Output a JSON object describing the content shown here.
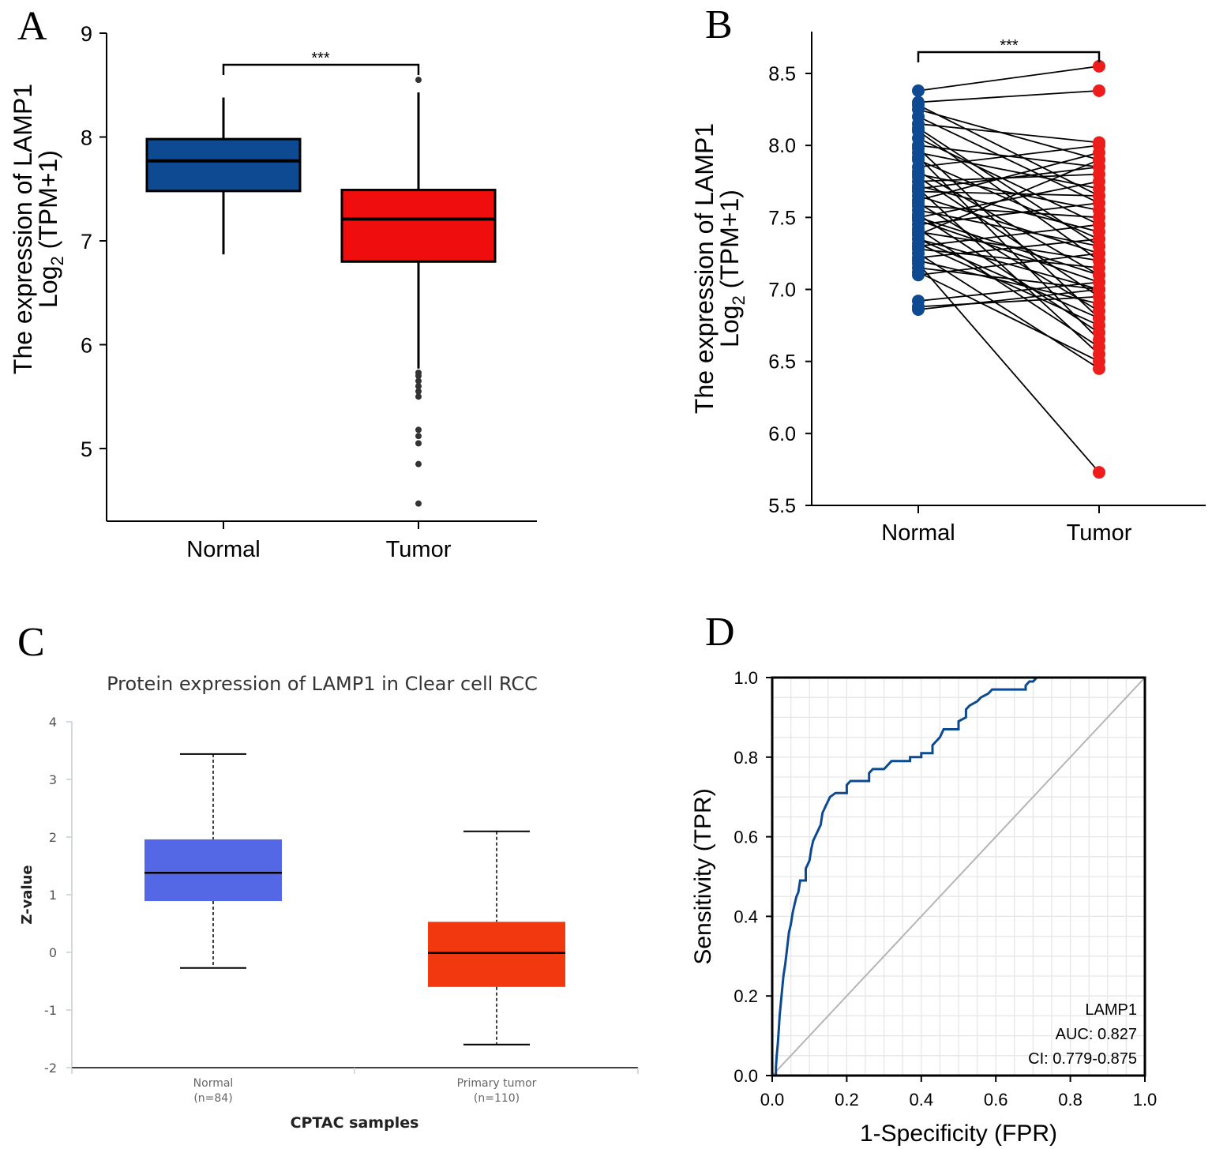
{
  "chart_data": [
    {
      "panel": "A",
      "type": "box",
      "ylabel_line1": "The expression of LAMP1",
      "ylabel_log": "Log",
      "ylabel_sub": "2",
      "ylabel_rest": " (TPM+1)",
      "yticks": [
        5,
        6,
        7,
        8,
        9
      ],
      "ylim": [
        4.3,
        9.0
      ],
      "categories": [
        "Normal",
        "Tumor"
      ],
      "significance": "***",
      "colors": [
        "#0d4a91",
        "#ef0d0d"
      ],
      "boxes": [
        {
          "name": "Normal",
          "whisker_low": 6.87,
          "q1": 7.48,
          "median": 7.77,
          "q3": 7.98,
          "whisker_high": 8.38,
          "outliers": []
        },
        {
          "name": "Tumor",
          "whisker_low": 5.77,
          "q1": 6.8,
          "median": 7.21,
          "q3": 7.49,
          "whisker_high": 8.43,
          "outliers": [
            8.55,
            5.73,
            5.7,
            5.65,
            5.6,
            5.55,
            5.5,
            5.18,
            5.12,
            5.05,
            4.85,
            4.47
          ]
        }
      ]
    },
    {
      "panel": "B",
      "type": "paired-line",
      "ylabel_line1": "The expression of LAMP1",
      "ylabel_log": "Log",
      "ylabel_sub": "2",
      "ylabel_rest": " (TPM+1)",
      "yticks": [
        "5.5",
        "6.0",
        "6.5",
        "7.0",
        "7.5",
        "8.0",
        "8.5"
      ],
      "ylim": [
        5.5,
        8.75
      ],
      "categories": [
        "Normal",
        "Tumor"
      ],
      "significance": "***",
      "colors": [
        "#0d4a91",
        "#ef1c1c"
      ],
      "pairs": [
        [
          8.38,
          8.55
        ],
        [
          8.3,
          8.38
        ],
        [
          8.25,
          7.9
        ],
        [
          8.2,
          7.6
        ],
        [
          8.15,
          8.02
        ],
        [
          8.1,
          7.2
        ],
        [
          8.05,
          7.45
        ],
        [
          8.0,
          7.85
        ],
        [
          7.98,
          6.8
        ],
        [
          7.95,
          7.7
        ],
        [
          7.9,
          7.35
        ],
        [
          7.85,
          8.0
        ],
        [
          7.82,
          7.1
        ],
        [
          7.8,
          7.55
        ],
        [
          7.78,
          6.95
        ],
        [
          7.75,
          7.8
        ],
        [
          7.72,
          7.4
        ],
        [
          7.7,
          6.55
        ],
        [
          7.68,
          7.65
        ],
        [
          7.65,
          7.25
        ],
        [
          7.62,
          7.95
        ],
        [
          7.6,
          6.85
        ],
        [
          7.58,
          7.5
        ],
        [
          7.55,
          7.3
        ],
        [
          7.52,
          6.7
        ],
        [
          7.5,
          7.75
        ],
        [
          7.48,
          7.05
        ],
        [
          7.45,
          7.6
        ],
        [
          7.42,
          6.6
        ],
        [
          7.4,
          7.2
        ],
        [
          7.38,
          7.9
        ],
        [
          7.35,
          7.0
        ],
        [
          7.32,
          6.75
        ],
        [
          7.3,
          7.45
        ],
        [
          7.28,
          7.15
        ],
        [
          7.25,
          6.45
        ],
        [
          7.22,
          7.35
        ],
        [
          7.2,
          6.9
        ],
        [
          7.18,
          5.73
        ],
        [
          7.15,
          7.0
        ],
        [
          7.12,
          6.5
        ],
        [
          7.1,
          7.25
        ],
        [
          8.28,
          7.65
        ],
        [
          8.12,
          7.3
        ],
        [
          7.92,
          6.65
        ],
        [
          7.7,
          7.85
        ],
        [
          7.5,
          7.1
        ],
        [
          7.35,
          6.8
        ],
        [
          6.92,
          7.05
        ],
        [
          6.88,
          6.95
        ],
        [
          6.86,
          7.0
        ]
      ]
    },
    {
      "panel": "C",
      "type": "box",
      "title": "Protein expression of LAMP1 in Clear cell RCC",
      "ylabel": "Z-value",
      "xlabel": "CPTAC samples",
      "yticks": [
        "-2",
        "-1",
        "0",
        "1",
        "2",
        "3",
        "4"
      ],
      "ylim": [
        -2,
        4
      ],
      "categories": [
        "Normal",
        "Primary tumor"
      ],
      "counts": [
        "(n=84)",
        "(n=110)"
      ],
      "colors": [
        "#5468e6",
        "#f2380f"
      ],
      "boxes": [
        {
          "name": "Normal",
          "whisker_low": -0.27,
          "q1": 0.89,
          "median": 1.38,
          "q3": 1.96,
          "whisker_high": 3.44
        },
        {
          "name": "Primary tumor",
          "whisker_low": -1.6,
          "q1": -0.6,
          "median": -0.01,
          "q3": 0.53,
          "whisker_high": 2.1
        }
      ]
    },
    {
      "panel": "D",
      "type": "roc",
      "xlabel": "1-Specificity (FPR)",
      "ylabel": "Sensitivity (TPR)",
      "xticks": [
        "0.0",
        "0.2",
        "0.4",
        "0.6",
        "0.8",
        "1.0"
      ],
      "yticks": [
        "0.0",
        "0.2",
        "0.4",
        "0.6",
        "0.8",
        "1.0"
      ],
      "xlim": [
        0,
        1
      ],
      "ylim": [
        0,
        1
      ],
      "legend": [
        "LAMP1",
        "AUC: 0.827",
        "CI: 0.779-0.875"
      ],
      "curve_color": "#0b4a92",
      "diagonal_color": "#b5b5b5",
      "curve": [
        [
          0,
          0
        ],
        [
          0.01,
          0
        ],
        [
          0.01,
          0.02
        ],
        [
          0.012,
          0.05
        ],
        [
          0.015,
          0.08
        ],
        [
          0.018,
          0.12
        ],
        [
          0.02,
          0.15
        ],
        [
          0.025,
          0.2
        ],
        [
          0.03,
          0.25
        ],
        [
          0.035,
          0.28
        ],
        [
          0.04,
          0.32
        ],
        [
          0.045,
          0.36
        ],
        [
          0.05,
          0.38
        ],
        [
          0.055,
          0.41
        ],
        [
          0.06,
          0.43
        ],
        [
          0.065,
          0.45
        ],
        [
          0.07,
          0.46
        ],
        [
          0.075,
          0.49
        ],
        [
          0.09,
          0.49
        ],
        [
          0.09,
          0.52
        ],
        [
          0.1,
          0.54
        ],
        [
          0.105,
          0.57
        ],
        [
          0.11,
          0.59
        ],
        [
          0.12,
          0.61
        ],
        [
          0.13,
          0.63
        ],
        [
          0.135,
          0.66
        ],
        [
          0.145,
          0.68
        ],
        [
          0.155,
          0.7
        ],
        [
          0.17,
          0.71
        ],
        [
          0.2,
          0.71
        ],
        [
          0.2,
          0.73
        ],
        [
          0.21,
          0.74
        ],
        [
          0.26,
          0.74
        ],
        [
          0.26,
          0.76
        ],
        [
          0.27,
          0.77
        ],
        [
          0.3,
          0.77
        ],
        [
          0.31,
          0.78
        ],
        [
          0.32,
          0.79
        ],
        [
          0.37,
          0.79
        ],
        [
          0.37,
          0.8
        ],
        [
          0.4,
          0.8
        ],
        [
          0.4,
          0.81
        ],
        [
          0.43,
          0.81
        ],
        [
          0.43,
          0.83
        ],
        [
          0.44,
          0.84
        ],
        [
          0.45,
          0.85
        ],
        [
          0.46,
          0.87
        ],
        [
          0.5,
          0.87
        ],
        [
          0.5,
          0.89
        ],
        [
          0.52,
          0.9
        ],
        [
          0.52,
          0.92
        ],
        [
          0.53,
          0.93
        ],
        [
          0.55,
          0.94
        ],
        [
          0.56,
          0.95
        ],
        [
          0.58,
          0.96
        ],
        [
          0.59,
          0.97
        ],
        [
          0.68,
          0.97
        ],
        [
          0.68,
          0.98
        ],
        [
          0.69,
          0.99
        ],
        [
          0.7,
          0.99
        ],
        [
          0.71,
          1.0
        ],
        [
          1.0,
          1.0
        ]
      ]
    }
  ],
  "panel_labels": [
    "A",
    "B",
    "C",
    "D"
  ]
}
